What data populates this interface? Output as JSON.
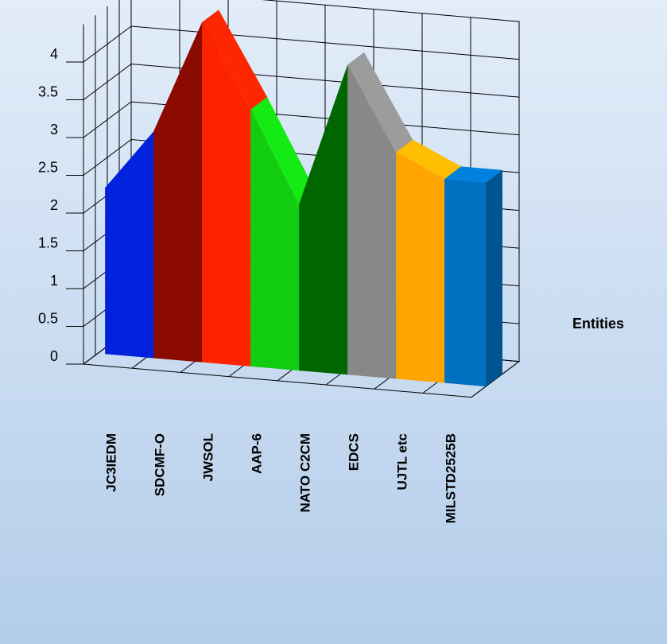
{
  "chart_data": {
    "type": "ribbon3d",
    "series": [
      {
        "name": "Entities",
        "categories": [
          "JC3IEDM",
          "SDCMF-O",
          "JWSOL",
          "AAP-6",
          "NATO C2CM",
          "EDCS",
          "UJTL etc",
          "MILSTD2525B"
        ],
        "values": [
          2.2,
          3.0,
          4.5,
          3.4,
          2.2,
          4.1,
          3.0,
          2.7
        ],
        "colors": [
          "#0022dd",
          "#8b0a00",
          "#ff2200",
          "#11cc11",
          "#006600",
          "#888888",
          "#ffa500",
          "#0070c0"
        ]
      }
    ],
    "ylim": [
      0,
      4.5
    ],
    "yticks": [
      0,
      0.5,
      1,
      1.5,
      2,
      2.5,
      3,
      3.5,
      4
    ]
  }
}
